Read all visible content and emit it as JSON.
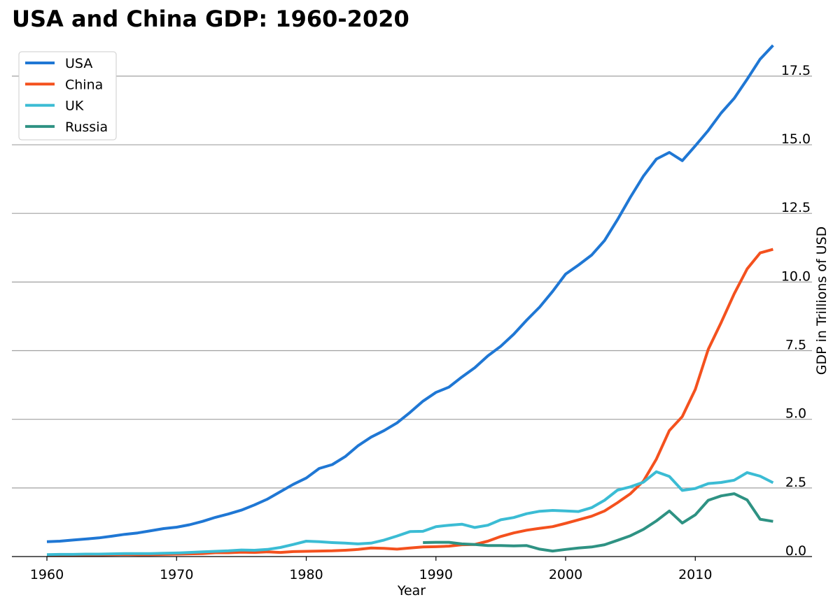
{
  "chart_data": {
    "type": "line",
    "title": "USA and China GDP: 1960-2020",
    "xlabel": "Year",
    "ylabel": "GDP in Trillions of USD",
    "xlim": [
      1957.3,
      2019.0
    ],
    "ylim": [
      0,
      19.0
    ],
    "x_ticks": [
      1960,
      1970,
      1980,
      1990,
      2000,
      2010
    ],
    "x_tick_labels": [
      "1960",
      "1970",
      "1980",
      "1990",
      "2000",
      "2010"
    ],
    "y_ticks": [
      0,
      2.5,
      5,
      7.5,
      10,
      12.5,
      15,
      17.5
    ],
    "y_tick_labels": [
      "0.0",
      "2.5",
      "5.0",
      "7.5",
      "10.0",
      "12.5",
      "15.0",
      "17.5"
    ],
    "grid": "horizontal",
    "y_axis_side": "right",
    "legend_position": "top-left",
    "series": [
      {
        "name": "USA",
        "color": "#1f77d4",
        "x": [
          1960,
          1961,
          1962,
          1963,
          1964,
          1965,
          1966,
          1967,
          1968,
          1969,
          1970,
          1971,
          1972,
          1973,
          1974,
          1975,
          1976,
          1977,
          1978,
          1979,
          1980,
          1981,
          1982,
          1983,
          1984,
          1985,
          1986,
          1987,
          1988,
          1989,
          1990,
          1991,
          1992,
          1993,
          1994,
          1995,
          1996,
          1997,
          1998,
          1999,
          2000,
          2001,
          2002,
          2003,
          2004,
          2005,
          2006,
          2007,
          2008,
          2009,
          2010,
          2011,
          2012,
          2013,
          2014,
          2015,
          2016
        ],
        "values": [
          0.54,
          0.56,
          0.6,
          0.64,
          0.68,
          0.74,
          0.81,
          0.86,
          0.94,
          1.02,
          1.07,
          1.16,
          1.28,
          1.43,
          1.55,
          1.69,
          1.88,
          2.09,
          2.36,
          2.63,
          2.86,
          3.21,
          3.35,
          3.64,
          4.04,
          4.35,
          4.59,
          4.87,
          5.25,
          5.66,
          5.98,
          6.17,
          6.54,
          6.88,
          7.31,
          7.66,
          8.1,
          8.61,
          9.09,
          9.66,
          10.29,
          10.62,
          10.98,
          11.51,
          12.27,
          13.09,
          13.86,
          14.48,
          14.72,
          14.42,
          14.96,
          15.52,
          16.16,
          16.69,
          17.39,
          18.12,
          18.62
        ]
      },
      {
        "name": "China",
        "color": "#f4511e",
        "x": [
          1960,
          1961,
          1962,
          1963,
          1964,
          1965,
          1966,
          1967,
          1968,
          1969,
          1970,
          1971,
          1972,
          1973,
          1974,
          1975,
          1976,
          1977,
          1978,
          1979,
          1980,
          1981,
          1982,
          1983,
          1984,
          1985,
          1986,
          1987,
          1988,
          1989,
          1990,
          1991,
          1992,
          1993,
          1994,
          1995,
          1996,
          1997,
          1998,
          1999,
          2000,
          2001,
          2002,
          2003,
          2004,
          2005,
          2006,
          2007,
          2008,
          2009,
          2010,
          2011,
          2012,
          2013,
          2014,
          2015,
          2016
        ],
        "values": [
          0.06,
          0.05,
          0.05,
          0.05,
          0.06,
          0.07,
          0.08,
          0.07,
          0.07,
          0.08,
          0.09,
          0.1,
          0.11,
          0.14,
          0.14,
          0.16,
          0.15,
          0.17,
          0.15,
          0.18,
          0.19,
          0.2,
          0.21,
          0.23,
          0.26,
          0.31,
          0.3,
          0.27,
          0.31,
          0.35,
          0.36,
          0.38,
          0.43,
          0.44,
          0.56,
          0.73,
          0.86,
          0.96,
          1.03,
          1.09,
          1.21,
          1.34,
          1.47,
          1.66,
          1.96,
          2.29,
          2.75,
          3.55,
          4.59,
          5.1,
          6.09,
          7.55,
          8.53,
          9.57,
          10.48,
          11.06,
          11.19
        ]
      },
      {
        "name": "UK",
        "color": "#3bbcd4",
        "x": [
          1960,
          1961,
          1962,
          1963,
          1964,
          1965,
          1966,
          1967,
          1968,
          1969,
          1970,
          1971,
          1972,
          1973,
          1974,
          1975,
          1976,
          1977,
          1978,
          1979,
          1980,
          1981,
          1982,
          1983,
          1984,
          1985,
          1986,
          1987,
          1988,
          1989,
          1990,
          1991,
          1992,
          1993,
          1994,
          1995,
          1996,
          1997,
          1998,
          1999,
          2000,
          2001,
          2002,
          2003,
          2004,
          2005,
          2006,
          2007,
          2008,
          2009,
          2010,
          2011,
          2012,
          2013,
          2014,
          2015,
          2016
        ],
        "values": [
          0.07,
          0.08,
          0.08,
          0.09,
          0.09,
          0.1,
          0.11,
          0.11,
          0.11,
          0.12,
          0.13,
          0.15,
          0.17,
          0.19,
          0.21,
          0.24,
          0.23,
          0.26,
          0.33,
          0.44,
          0.56,
          0.54,
          0.51,
          0.49,
          0.46,
          0.49,
          0.6,
          0.75,
          0.91,
          0.92,
          1.09,
          1.14,
          1.18,
          1.06,
          1.14,
          1.34,
          1.42,
          1.56,
          1.65,
          1.68,
          1.66,
          1.64,
          1.78,
          2.05,
          2.42,
          2.54,
          2.71,
          3.09,
          2.92,
          2.41,
          2.48,
          2.66,
          2.7,
          2.78,
          3.06,
          2.93,
          2.69
        ]
      },
      {
        "name": "Russia",
        "color": "#2e9283",
        "x": [
          1989,
          1990,
          1991,
          1992,
          1993,
          1994,
          1995,
          1996,
          1997,
          1998,
          1999,
          2000,
          2001,
          2002,
          2003,
          2004,
          2005,
          2006,
          2007,
          2008,
          2009,
          2010,
          2011,
          2012,
          2013,
          2014,
          2015,
          2016
        ],
        "values": [
          0.51,
          0.52,
          0.52,
          0.46,
          0.44,
          0.4,
          0.4,
          0.39,
          0.4,
          0.27,
          0.2,
          0.26,
          0.31,
          0.35,
          0.43,
          0.59,
          0.76,
          0.99,
          1.3,
          1.66,
          1.22,
          1.52,
          2.05,
          2.21,
          2.29,
          2.06,
          1.36,
          1.28
        ]
      }
    ]
  }
}
